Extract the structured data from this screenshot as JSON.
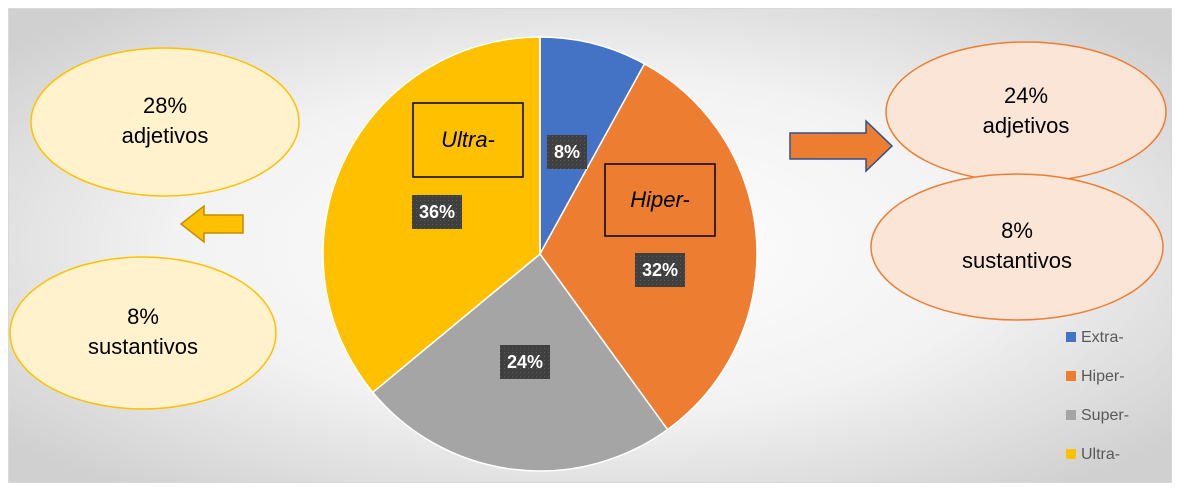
{
  "chart_data": {
    "type": "pie",
    "categories": [
      "Extra-",
      "Hiper-",
      "Super-",
      "Ultra-"
    ],
    "values": [
      8,
      32,
      24,
      36
    ],
    "value_labels": [
      "8%",
      "32%",
      "24%",
      "36%"
    ],
    "colors": [
      "#4472c4",
      "#ed7d31",
      "#a5a5a5",
      "#ffc000"
    ],
    "legend": "right",
    "slice_annotations": [
      "Ultra-",
      "Hiper-"
    ],
    "annotations": [
      {
        "lines": [
          "28%",
          "adjetivos"
        ]
      },
      {
        "lines": [
          "8%",
          "sustantivos"
        ]
      },
      {
        "lines": [
          "24%",
          "adjetivos"
        ]
      },
      {
        "lines": [
          "8%",
          "sustantivos"
        ]
      }
    ]
  }
}
